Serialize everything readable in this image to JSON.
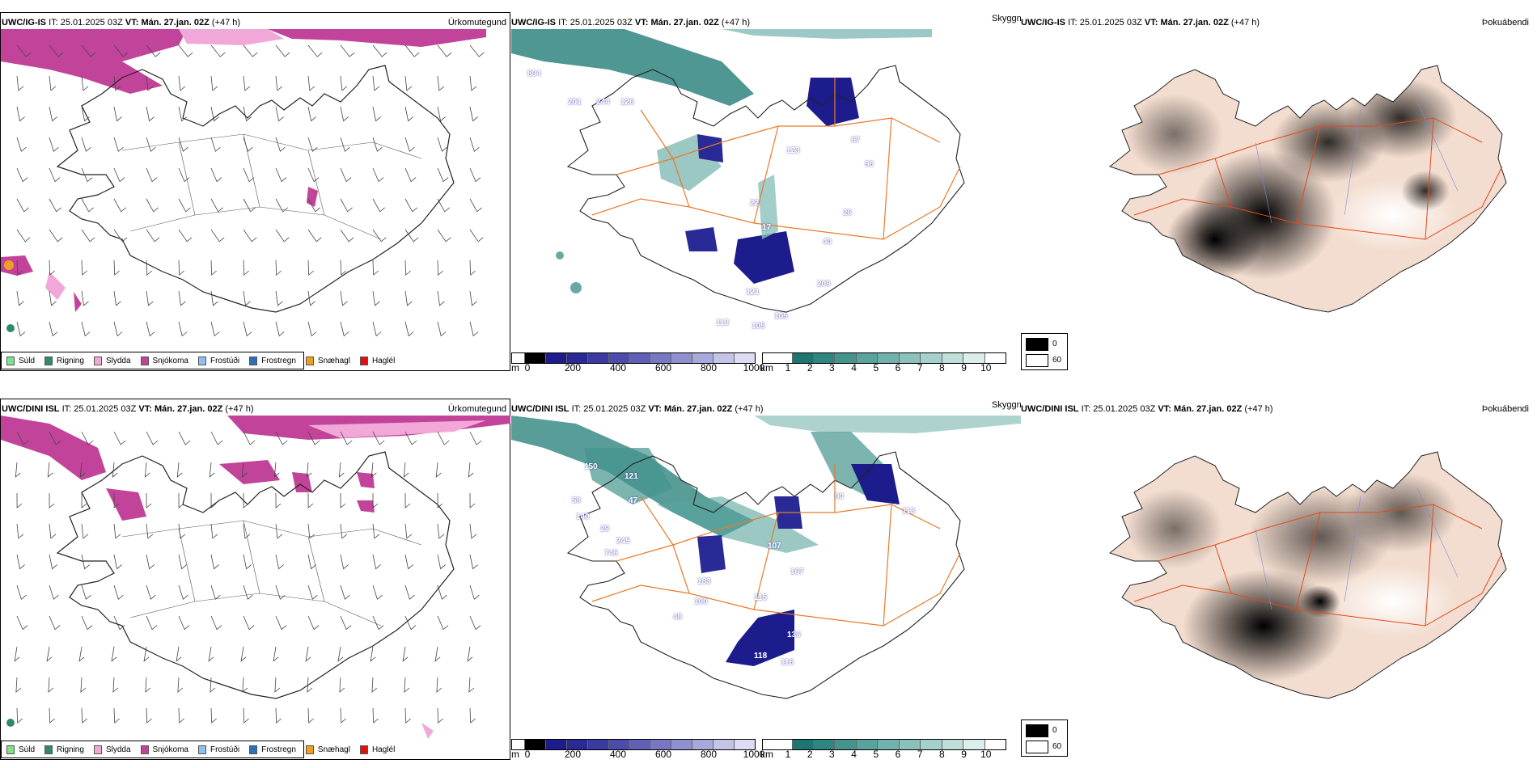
{
  "rows": [
    {
      "model": "UWC/IG-IS",
      "it_label": "IT:",
      "it_value": "25.01.2025 03Z",
      "vt_label": "VT:",
      "vt_value": "Mán. 27.jan. 02Z",
      "lead": "(+47 h)",
      "visibility_labels": [
        "894",
        "201",
        "244",
        "126",
        "67",
        "96",
        "22",
        "123",
        "17",
        "40",
        "209",
        "121",
        "105",
        "105",
        "113",
        "26",
        "70"
      ]
    },
    {
      "model": "UWC/DINI ISL",
      "it_label": "IT:",
      "it_value": "25.01.2025 03Z",
      "vt_label": "VT:",
      "vt_value": "Mán. 27.jan. 02Z",
      "lead": "(+47 h)",
      "visibility_labels": [
        "150",
        "121",
        "58",
        "140",
        "47",
        "29",
        "245",
        "746",
        "107",
        "167",
        "183",
        "100",
        "48",
        "115",
        "136",
        "118",
        "116",
        "113",
        "90"
      ]
    }
  ],
  "panel_titles": {
    "precip_type": "Úrkomutegund",
    "visibility": "Skyggni",
    "fog_index": "Þokuábendi"
  },
  "precip_legend": [
    {
      "label": "Súld",
      "color": "#7de38a"
    },
    {
      "label": "Rigning",
      "color": "#2e8b63"
    },
    {
      "label": "Slydda",
      "color": "#f1a8d8"
    },
    {
      "label": "Snjókoma",
      "color": "#c2449a"
    },
    {
      "label": "Frostúði",
      "color": "#8fbff0"
    },
    {
      "label": "Frostregn",
      "color": "#2f6fb5"
    },
    {
      "label": "Snæhagl",
      "color": "#f0a020"
    },
    {
      "label": "Haglél",
      "color": "#e01010"
    }
  ],
  "ceiling_scale": {
    "unit": "m",
    "ticks": [
      "0",
      "200",
      "400",
      "600",
      "800",
      "1000"
    ],
    "colors": [
      "#000000",
      "#1c1c8c",
      "#2a2a96",
      "#3a3aa0",
      "#4c4cac",
      "#6060b6",
      "#7878c2",
      "#9090ce",
      "#a8a8da",
      "#c4c4e6",
      "#dcdcf2"
    ]
  },
  "visibility_scale": {
    "unit": "km",
    "ticks": [
      "1",
      "2",
      "3",
      "4",
      "5",
      "6",
      "7",
      "8",
      "9",
      "10"
    ],
    "colors": [
      "#1f7570",
      "#2f8580",
      "#44948e",
      "#5aa39d",
      "#72b2ac",
      "#8cc1bb",
      "#a6d0ca",
      "#c0dfda",
      "#dceeeb",
      "#ffffff"
    ]
  },
  "fog_scale": {
    "items": [
      {
        "label": "0",
        "color": "#000000"
      },
      {
        "label": "60",
        "color": "#ffffff"
      }
    ]
  }
}
